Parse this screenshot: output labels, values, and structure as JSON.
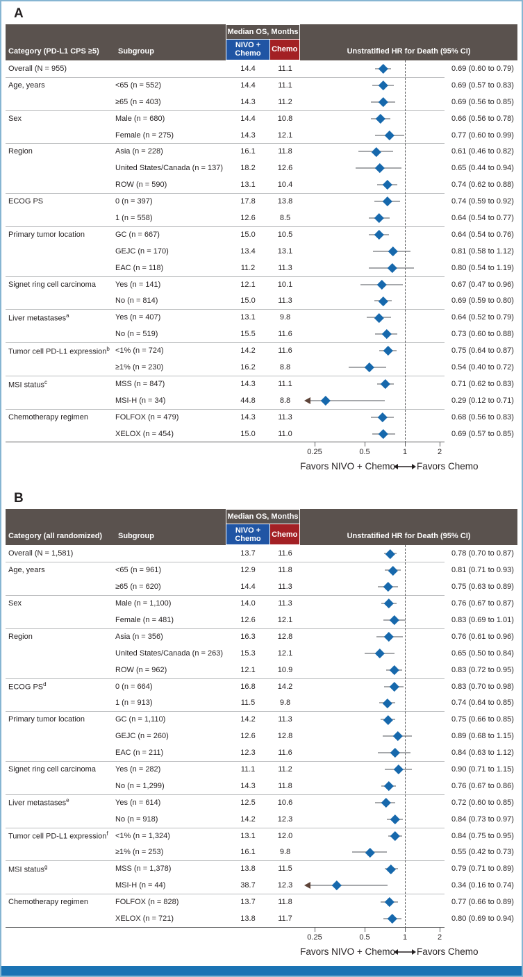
{
  "figure": {
    "frame_color": "#86b5d2",
    "bottom_bar_color": "#1b73b4",
    "header_bg_color": "#5a524e",
    "nivo_header_color": "#2055a4",
    "chemo_header_color": "#a32024",
    "diamond_color": "#1668ac",
    "ci_line_color": "#a6a8ab",
    "clamp_arrow_color": "#5d4338"
  },
  "chart_data": [
    {
      "type": "forest",
      "panel": "A",
      "xscale": "log",
      "xticks": [
        "0.25",
        "0.5",
        "1",
        "2"
      ],
      "xtick_values": [
        0.25,
        0.5,
        1,
        2
      ],
      "reference_line": 1,
      "favors_left": "Favors NIVO + Chemo",
      "favors_right": "Favors Chemo",
      "header": {
        "category": "Category (PD-L1 CPS ≥5)",
        "subgroup": "Subgroup",
        "median_os": "Median OS, Months",
        "nivo": "NIVO + Chemo",
        "chemo": "Chemo",
        "hr": "Unstratified HR for Death (95% CI)"
      },
      "rows": [
        {
          "category": "Overall (N = 955)",
          "subgroup": "",
          "nivo": "14.4",
          "chemo": "11.1",
          "hr": 0.69,
          "lo": 0.6,
          "hi": 0.79,
          "hr_text": "0.69 (0.60 to 0.79)"
        },
        {
          "category": "Age, years",
          "subgroup": "<65 (n = 552)",
          "nivo": "14.4",
          "chemo": "11.1",
          "hr": 0.69,
          "lo": 0.57,
          "hi": 0.83,
          "hr_text": "0.69 (0.57 to 0.83)",
          "sep": true
        },
        {
          "category": "",
          "subgroup": "≥65 (n = 403)",
          "nivo": "14.3",
          "chemo": "11.2",
          "hr": 0.69,
          "lo": 0.56,
          "hi": 0.85,
          "hr_text": "0.69 (0.56 to 0.85)"
        },
        {
          "category": "Sex",
          "subgroup": "Male (n = 680)",
          "nivo": "14.4",
          "chemo": "10.8",
          "hr": 0.66,
          "lo": 0.56,
          "hi": 0.78,
          "hr_text": "0.66 (0.56 to 0.78)",
          "sep": true
        },
        {
          "category": "",
          "subgroup": "Female (n = 275)",
          "nivo": "14.3",
          "chemo": "12.1",
          "hr": 0.77,
          "lo": 0.6,
          "hi": 0.99,
          "hr_text": "0.77 (0.60 to 0.99)"
        },
        {
          "category": "Region",
          "subgroup": "Asia (n = 228)",
          "nivo": "16.1",
          "chemo": "11.8",
          "hr": 0.61,
          "lo": 0.46,
          "hi": 0.82,
          "hr_text": "0.61 (0.46 to 0.82)",
          "sep": true
        },
        {
          "category": "",
          "subgroup": "United States/Canada (n = 137)",
          "nivo": "18.2",
          "chemo": "12.6",
          "hr": 0.65,
          "lo": 0.44,
          "hi": 0.94,
          "hr_text": "0.65 (0.44 to 0.94)"
        },
        {
          "category": "",
          "subgroup": "ROW (n = 590)",
          "nivo": "13.1",
          "chemo": "10.4",
          "hr": 0.74,
          "lo": 0.62,
          "hi": 0.88,
          "hr_text": "0.74 (0.62 to 0.88)"
        },
        {
          "category": "ECOG PS",
          "subgroup": "0 (n = 397)",
          "nivo": "17.8",
          "chemo": "13.8",
          "hr": 0.74,
          "lo": 0.59,
          "hi": 0.92,
          "hr_text": "0.74 (0.59 to 0.92)",
          "sep": true
        },
        {
          "category": "",
          "subgroup": "1 (n = 558)",
          "nivo": "12.6",
          "chemo": "8.5",
          "hr": 0.64,
          "lo": 0.54,
          "hi": 0.77,
          "hr_text": "0.64 (0.54 to 0.77)"
        },
        {
          "category": "Primary tumor location",
          "subgroup": "GC (n = 667)",
          "nivo": "15.0",
          "chemo": "10.5",
          "hr": 0.64,
          "lo": 0.54,
          "hi": 0.76,
          "hr_text": "0.64 (0.54 to 0.76)",
          "sep": true
        },
        {
          "category": "",
          "subgroup": "GEJC (n = 170)",
          "nivo": "13.4",
          "chemo": "13.1",
          "hr": 0.81,
          "lo": 0.58,
          "hi": 1.12,
          "hr_text": "0.81 (0.58 to 1.12)"
        },
        {
          "category": "",
          "subgroup": "EAC (n = 118)",
          "nivo": "11.2",
          "chemo": "11.3",
          "hr": 0.8,
          "lo": 0.54,
          "hi": 1.19,
          "hr_text": "0.80 (0.54 to 1.19)"
        },
        {
          "category": "Signet ring cell carcinoma",
          "subgroup": "Yes (n = 141)",
          "nivo": "12.1",
          "chemo": "10.1",
          "hr": 0.67,
          "lo": 0.47,
          "hi": 0.96,
          "hr_text": "0.67 (0.47 to 0.96)",
          "sep": true
        },
        {
          "category": "",
          "subgroup": "No (n = 814)",
          "nivo": "15.0",
          "chemo": "11.3",
          "hr": 0.69,
          "lo": 0.59,
          "hi": 0.8,
          "hr_text": "0.69 (0.59 to 0.80)"
        },
        {
          "category": "Liver metastases",
          "sup": "a",
          "subgroup": "Yes (n = 407)",
          "nivo": "13.1",
          "chemo": "9.8",
          "hr": 0.64,
          "lo": 0.52,
          "hi": 0.79,
          "hr_text": "0.64 (0.52 to 0.79)",
          "sep": true
        },
        {
          "category": "",
          "subgroup": "No (n = 519)",
          "nivo": "15.5",
          "chemo": "11.6",
          "hr": 0.73,
          "lo": 0.6,
          "hi": 0.88,
          "hr_text": "0.73 (0.60 to 0.88)"
        },
        {
          "category": "Tumor cell PD-L1 expression",
          "sup": "b",
          "subgroup": "<1% (n = 724)",
          "nivo": "14.2",
          "chemo": "11.6",
          "hr": 0.75,
          "lo": 0.64,
          "hi": 0.87,
          "hr_text": "0.75 (0.64 to 0.87)",
          "sep": true
        },
        {
          "category": "",
          "subgroup": "≥1% (n = 230)",
          "nivo": "16.2",
          "chemo": "8.8",
          "hr": 0.54,
          "lo": 0.4,
          "hi": 0.72,
          "hr_text": "0.54 (0.40 to 0.72)"
        },
        {
          "category": "MSI status",
          "sup": "c",
          "subgroup": "MSS (n = 847)",
          "nivo": "14.3",
          "chemo": "11.1",
          "hr": 0.71,
          "lo": 0.62,
          "hi": 0.83,
          "hr_text": "0.71 (0.62 to 0.83)",
          "sep": true
        },
        {
          "category": "",
          "subgroup": "MSI-H (n = 34)",
          "nivo": "44.8",
          "chemo": "8.8",
          "hr": 0.29,
          "lo": 0.12,
          "hi": 0.71,
          "hr_text": "0.29 (0.12 to 0.71)",
          "clamp_lo": true
        },
        {
          "category": "Chemotherapy regimen",
          "subgroup": "FOLFOX (n = 479)",
          "nivo": "14.3",
          "chemo": "11.3",
          "hr": 0.68,
          "lo": 0.56,
          "hi": 0.83,
          "hr_text": "0.68 (0.56 to 0.83)",
          "sep": true
        },
        {
          "category": "",
          "subgroup": "XELOX (n = 454)",
          "nivo": "15.0",
          "chemo": "11.0",
          "hr": 0.69,
          "lo": 0.57,
          "hi": 0.85,
          "hr_text": "0.69 (0.57 to 0.85)"
        }
      ]
    },
    {
      "type": "forest",
      "panel": "B",
      "xscale": "log",
      "xticks": [
        "0.25",
        "0.5",
        "1",
        "2"
      ],
      "xtick_values": [
        0.25,
        0.5,
        1,
        2
      ],
      "reference_line": 1,
      "favors_left": "Favors NIVO + Chemo",
      "favors_right": "Favors Chemo",
      "header": {
        "category": "Category (all randomized)",
        "subgroup": "Subgroup",
        "median_os": "Median OS, Months",
        "nivo": "NIVO + Chemo",
        "chemo": "Chemo",
        "hr": "Unstratified HR for Death (95% CI)"
      },
      "rows": [
        {
          "category": "Overall (N = 1,581)",
          "subgroup": "",
          "nivo": "13.7",
          "chemo": "11.6",
          "hr": 0.78,
          "lo": 0.7,
          "hi": 0.87,
          "hr_text": "0.78 (0.70 to 0.87)"
        },
        {
          "category": "Age, years",
          "subgroup": "<65 (n = 961)",
          "nivo": "12.9",
          "chemo": "11.8",
          "hr": 0.81,
          "lo": 0.71,
          "hi": 0.93,
          "hr_text": "0.81 (0.71 to 0.93)",
          "sep": true
        },
        {
          "category": "",
          "subgroup": "≥65 (n = 620)",
          "nivo": "14.4",
          "chemo": "11.3",
          "hr": 0.75,
          "lo": 0.63,
          "hi": 0.89,
          "hr_text": "0.75 (0.63 to 0.89)"
        },
        {
          "category": "Sex",
          "subgroup": "Male (n = 1,100)",
          "nivo": "14.0",
          "chemo": "11.3",
          "hr": 0.76,
          "lo": 0.67,
          "hi": 0.87,
          "hr_text": "0.76 (0.67 to 0.87)",
          "sep": true
        },
        {
          "category": "",
          "subgroup": "Female (n = 481)",
          "nivo": "12.6",
          "chemo": "12.1",
          "hr": 0.83,
          "lo": 0.69,
          "hi": 1.01,
          "hr_text": "0.83 (0.69 to 1.01)"
        },
        {
          "category": "Region",
          "subgroup": "Asia (n = 356)",
          "nivo": "16.3",
          "chemo": "12.8",
          "hr": 0.76,
          "lo": 0.61,
          "hi": 0.96,
          "hr_text": "0.76 (0.61 to 0.96)",
          "sep": true
        },
        {
          "category": "",
          "subgroup": "United States/Canada (n = 263)",
          "nivo": "15.3",
          "chemo": "12.1",
          "hr": 0.65,
          "lo": 0.5,
          "hi": 0.84,
          "hr_text": "0.65 (0.50 to 0.84)"
        },
        {
          "category": "",
          "subgroup": "ROW (n = 962)",
          "nivo": "12.1",
          "chemo": "10.9",
          "hr": 0.83,
          "lo": 0.72,
          "hi": 0.95,
          "hr_text": "0.83 (0.72 to 0.95)"
        },
        {
          "category": "ECOG PS",
          "sup": "d",
          "subgroup": "0 (n = 664)",
          "nivo": "16.8",
          "chemo": "14.2",
          "hr": 0.83,
          "lo": 0.7,
          "hi": 0.98,
          "hr_text": "0.83 (0.70 to 0.98)",
          "sep": true
        },
        {
          "category": "",
          "subgroup": "1 (n = 913)",
          "nivo": "11.5",
          "chemo": "9.8",
          "hr": 0.74,
          "lo": 0.64,
          "hi": 0.85,
          "hr_text": "0.74 (0.64 to 0.85)"
        },
        {
          "category": "Primary tumor location",
          "subgroup": "GC (n = 1,110)",
          "nivo": "14.2",
          "chemo": "11.3",
          "hr": 0.75,
          "lo": 0.66,
          "hi": 0.85,
          "hr_text": "0.75 (0.66 to 0.85)",
          "sep": true
        },
        {
          "category": "",
          "subgroup": "GEJC (n = 260)",
          "nivo": "12.6",
          "chemo": "12.8",
          "hr": 0.89,
          "lo": 0.68,
          "hi": 1.15,
          "hr_text": "0.89 (0.68 to 1.15)"
        },
        {
          "category": "",
          "subgroup": "EAC (n = 211)",
          "nivo": "12.3",
          "chemo": "11.6",
          "hr": 0.84,
          "lo": 0.63,
          "hi": 1.12,
          "hr_text": "0.84 (0.63 to 1.12)"
        },
        {
          "category": "Signet ring cell carcinoma",
          "subgroup": "Yes (n = 282)",
          "nivo": "11.1",
          "chemo": "11.2",
          "hr": 0.9,
          "lo": 0.71,
          "hi": 1.15,
          "hr_text": "0.90 (0.71 to 1.15)",
          "sep": true
        },
        {
          "category": "",
          "subgroup": "No (n = 1,299)",
          "nivo": "14.3",
          "chemo": "11.8",
          "hr": 0.76,
          "lo": 0.67,
          "hi": 0.86,
          "hr_text": "0.76 (0.67 to 0.86)"
        },
        {
          "category": "Liver metastases",
          "sup": "e",
          "subgroup": "Yes (n = 614)",
          "nivo": "12.5",
          "chemo": "10.6",
          "hr": 0.72,
          "lo": 0.6,
          "hi": 0.85,
          "hr_text": "0.72 (0.60 to 0.85)",
          "sep": true
        },
        {
          "category": "",
          "subgroup": "No (n = 918)",
          "nivo": "14.2",
          "chemo": "12.3",
          "hr": 0.84,
          "lo": 0.73,
          "hi": 0.97,
          "hr_text": "0.84 (0.73 to 0.97)"
        },
        {
          "category": "Tumor cell PD-L1 expression",
          "sup": "f",
          "subgroup": "<1% (n = 1,324)",
          "nivo": "13.1",
          "chemo": "12.0",
          "hr": 0.84,
          "lo": 0.75,
          "hi": 0.95,
          "hr_text": "0.84 (0.75 to 0.95)",
          "sep": true
        },
        {
          "category": "",
          "subgroup": "≥1% (n = 253)",
          "nivo": "16.1",
          "chemo": "9.8",
          "hr": 0.55,
          "lo": 0.42,
          "hi": 0.73,
          "hr_text": "0.55 (0.42 to 0.73)"
        },
        {
          "category": "MSI status",
          "sup": "g",
          "subgroup": "MSS (n = 1,378)",
          "nivo": "13.8",
          "chemo": "11.5",
          "hr": 0.79,
          "lo": 0.71,
          "hi": 0.89,
          "hr_text": "0.79 (0.71 to 0.89)",
          "sep": true
        },
        {
          "category": "",
          "subgroup": "MSI-H (n = 44)",
          "nivo": "38.7",
          "chemo": "12.3",
          "hr": 0.34,
          "lo": 0.16,
          "hi": 0.74,
          "hr_text": "0.34 (0.16 to 0.74)",
          "clamp_lo": true
        },
        {
          "category": "Chemotherapy regimen",
          "subgroup": "FOLFOX (n = 828)",
          "nivo": "13.7",
          "chemo": "11.8",
          "hr": 0.77,
          "lo": 0.66,
          "hi": 0.89,
          "hr_text": "0.77 (0.66 to 0.89)",
          "sep": true
        },
        {
          "category": "",
          "subgroup": "XELOX (n = 721)",
          "nivo": "13.8",
          "chemo": "11.7",
          "hr": 0.8,
          "lo": 0.69,
          "hi": 0.94,
          "hr_text": "0.80 (0.69 to 0.94)"
        }
      ]
    }
  ]
}
